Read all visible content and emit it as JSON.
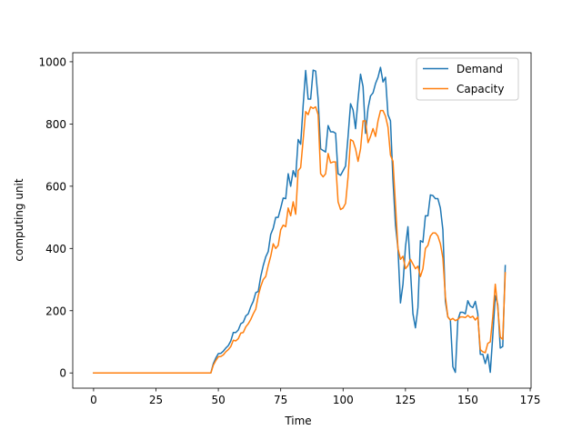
{
  "chart_data": {
    "type": "line",
    "xlabel": "Time",
    "ylabel": "computing unit",
    "xlim": [
      -8.35,
      175.35
    ],
    "ylim": [
      -49,
      1029
    ],
    "xticks": [
      0,
      25,
      50,
      75,
      100,
      125,
      150,
      175
    ],
    "yticks": [
      0,
      200,
      400,
      600,
      800,
      1000
    ],
    "xtick_labels": [
      "0",
      "25",
      "50",
      "75",
      "100",
      "125",
      "150",
      "175"
    ],
    "ytick_labels": [
      "0",
      "200",
      "400",
      "600",
      "800",
      "1000"
    ],
    "legend_position": "upper right",
    "grid": false,
    "series": [
      {
        "name": "Demand",
        "color": "#1f77b4",
        "points": [
          [
            0,
            0
          ],
          [
            47,
            0
          ],
          [
            48,
            30
          ],
          [
            49,
            48
          ],
          [
            50,
            62
          ],
          [
            51,
            63
          ],
          [
            52,
            70
          ],
          [
            53,
            80
          ],
          [
            54,
            88
          ],
          [
            55,
            103
          ],
          [
            56,
            130
          ],
          [
            57,
            130
          ],
          [
            58,
            138
          ],
          [
            59,
            158
          ],
          [
            60,
            163
          ],
          [
            61,
            183
          ],
          [
            62,
            190
          ],
          [
            63,
            213
          ],
          [
            64,
            230
          ],
          [
            65,
            258
          ],
          [
            66,
            262
          ],
          [
            67,
            310
          ],
          [
            68,
            345
          ],
          [
            69,
            373
          ],
          [
            70,
            390
          ],
          [
            71,
            445
          ],
          [
            72,
            465
          ],
          [
            73,
            500
          ],
          [
            74,
            500
          ],
          [
            75,
            530
          ],
          [
            76,
            562
          ],
          [
            77,
            560
          ],
          [
            78,
            640
          ],
          [
            79,
            600
          ],
          [
            80,
            650
          ],
          [
            81,
            630
          ],
          [
            82,
            750
          ],
          [
            83,
            735
          ],
          [
            84,
            860
          ],
          [
            85,
            972
          ],
          [
            86,
            880
          ],
          [
            87,
            880
          ],
          [
            88,
            973
          ],
          [
            89,
            970
          ],
          [
            90,
            880
          ],
          [
            91,
            720
          ],
          [
            92,
            715
          ],
          [
            93,
            710
          ],
          [
            94,
            795
          ],
          [
            95,
            775
          ],
          [
            96,
            775
          ],
          [
            97,
            770
          ],
          [
            98,
            640
          ],
          [
            99,
            635
          ],
          [
            100,
            650
          ],
          [
            101,
            665
          ],
          [
            102,
            760
          ],
          [
            103,
            865
          ],
          [
            104,
            845
          ],
          [
            105,
            785
          ],
          [
            106,
            880
          ],
          [
            107,
            960
          ],
          [
            108,
            920
          ],
          [
            109,
            770
          ],
          [
            110,
            850
          ],
          [
            111,
            890
          ],
          [
            112,
            900
          ],
          [
            113,
            930
          ],
          [
            114,
            950
          ],
          [
            115,
            982
          ],
          [
            116,
            935
          ],
          [
            117,
            950
          ],
          [
            118,
            830
          ],
          [
            119,
            810
          ],
          [
            120,
            620
          ],
          [
            121,
            475
          ],
          [
            122,
            400
          ],
          [
            123,
            225
          ],
          [
            124,
            285
          ],
          [
            125,
            405
          ],
          [
            126,
            470
          ],
          [
            127,
            330
          ],
          [
            128,
            190
          ],
          [
            129,
            145
          ],
          [
            130,
            210
          ],
          [
            131,
            425
          ],
          [
            132,
            420
          ],
          [
            133,
            505
          ],
          [
            134,
            505
          ],
          [
            135,
            572
          ],
          [
            136,
            570
          ],
          [
            137,
            560
          ],
          [
            138,
            560
          ],
          [
            139,
            530
          ],
          [
            140,
            460
          ],
          [
            141,
            230
          ],
          [
            142,
            180
          ],
          [
            143,
            170
          ],
          [
            144,
            20
          ],
          [
            145,
            2
          ],
          [
            146,
            170
          ],
          [
            147,
            195
          ],
          [
            148,
            195
          ],
          [
            149,
            190
          ],
          [
            150,
            232
          ],
          [
            151,
            215
          ],
          [
            152,
            210
          ],
          [
            153,
            230
          ],
          [
            154,
            190
          ],
          [
            155,
            60
          ],
          [
            156,
            60
          ],
          [
            157,
            30
          ],
          [
            158,
            60
          ],
          [
            159,
            2
          ],
          [
            160,
            120
          ],
          [
            161,
            248
          ],
          [
            162,
            220
          ],
          [
            163,
            80
          ],
          [
            164,
            85
          ],
          [
            165,
            345
          ]
        ]
      },
      {
        "name": "Capacity",
        "color": "#ff7f0e",
        "points": [
          [
            0,
            0
          ],
          [
            47,
            0
          ],
          [
            48,
            25
          ],
          [
            49,
            40
          ],
          [
            50,
            52
          ],
          [
            51,
            53
          ],
          [
            52,
            58
          ],
          [
            53,
            68
          ],
          [
            54,
            75
          ],
          [
            55,
            85
          ],
          [
            56,
            105
          ],
          [
            57,
            103
          ],
          [
            58,
            110
          ],
          [
            59,
            128
          ],
          [
            60,
            130
          ],
          [
            61,
            148
          ],
          [
            62,
            158
          ],
          [
            63,
            172
          ],
          [
            64,
            190
          ],
          [
            65,
            205
          ],
          [
            66,
            248
          ],
          [
            67,
            278
          ],
          [
            68,
            300
          ],
          [
            69,
            310
          ],
          [
            70,
            345
          ],
          [
            71,
            375
          ],
          [
            72,
            415
          ],
          [
            73,
            400
          ],
          [
            74,
            410
          ],
          [
            75,
            460
          ],
          [
            76,
            475
          ],
          [
            77,
            470
          ],
          [
            78,
            530
          ],
          [
            79,
            505
          ],
          [
            80,
            550
          ],
          [
            81,
            510
          ],
          [
            82,
            650
          ],
          [
            83,
            660
          ],
          [
            84,
            750
          ],
          [
            85,
            840
          ],
          [
            86,
            830
          ],
          [
            87,
            855
          ],
          [
            88,
            850
          ],
          [
            89,
            855
          ],
          [
            90,
            830
          ],
          [
            91,
            640
          ],
          [
            92,
            630
          ],
          [
            93,
            640
          ],
          [
            94,
            705
          ],
          [
            95,
            675
          ],
          [
            96,
            678
          ],
          [
            97,
            678
          ],
          [
            98,
            550
          ],
          [
            99,
            525
          ],
          [
            100,
            530
          ],
          [
            101,
            545
          ],
          [
            102,
            630
          ],
          [
            103,
            750
          ],
          [
            104,
            745
          ],
          [
            105,
            720
          ],
          [
            106,
            680
          ],
          [
            107,
            720
          ],
          [
            108,
            810
          ],
          [
            109,
            810
          ],
          [
            110,
            740
          ],
          [
            111,
            760
          ],
          [
            112,
            785
          ],
          [
            113,
            760
          ],
          [
            114,
            810
          ],
          [
            115,
            843
          ],
          [
            116,
            843
          ],
          [
            117,
            825
          ],
          [
            118,
            790
          ],
          [
            119,
            700
          ],
          [
            120,
            680
          ],
          [
            121,
            540
          ],
          [
            122,
            400
          ],
          [
            123,
            365
          ],
          [
            124,
            375
          ],
          [
            125,
            335
          ],
          [
            126,
            345
          ],
          [
            127,
            365
          ],
          [
            128,
            350
          ],
          [
            129,
            335
          ],
          [
            130,
            343
          ],
          [
            131,
            310
          ],
          [
            132,
            335
          ],
          [
            133,
            400
          ],
          [
            134,
            410
          ],
          [
            135,
            440
          ],
          [
            136,
            450
          ],
          [
            137,
            450
          ],
          [
            138,
            440
          ],
          [
            139,
            415
          ],
          [
            140,
            370
          ],
          [
            141,
            245
          ],
          [
            142,
            180
          ],
          [
            143,
            170
          ],
          [
            144,
            175
          ],
          [
            145,
            168
          ],
          [
            146,
            172
          ],
          [
            147,
            180
          ],
          [
            148,
            180
          ],
          [
            149,
            178
          ],
          [
            150,
            185
          ],
          [
            151,
            178
          ],
          [
            152,
            182
          ],
          [
            153,
            170
          ],
          [
            154,
            180
          ],
          [
            155,
            75
          ],
          [
            156,
            68
          ],
          [
            157,
            65
          ],
          [
            158,
            95
          ],
          [
            159,
            100
          ],
          [
            160,
            180
          ],
          [
            161,
            285
          ],
          [
            162,
            210
          ],
          [
            163,
            115
          ],
          [
            164,
            108
          ],
          [
            165,
            322
          ]
        ]
      }
    ]
  }
}
